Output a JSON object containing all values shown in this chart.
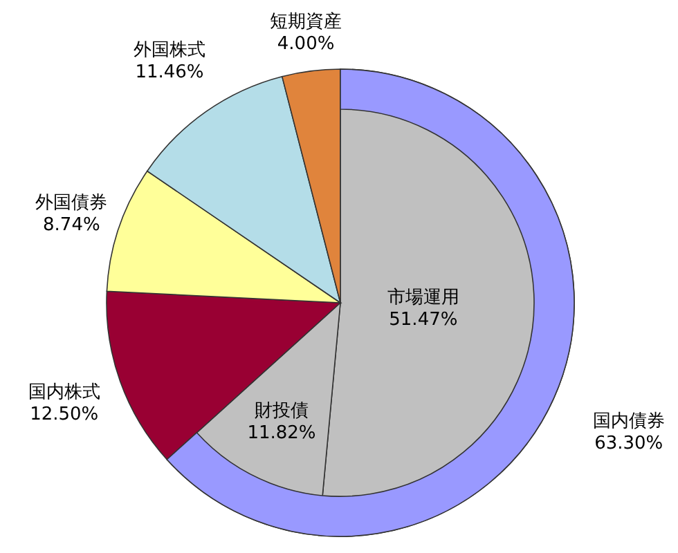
{
  "chart_data": [
    {
      "type": "pie",
      "categories": [
        "市場運用",
        "財投債",
        "国内株式",
        "外国債券",
        "外国株式",
        "短期資産"
      ],
      "values": [
        51.47,
        11.82,
        12.5,
        8.74,
        11.46,
        4.0
      ],
      "colors": [
        "#c0c0c0",
        "#c0c0c0",
        "#990033",
        "#ffff99",
        "#b4dde8",
        "#e0843c"
      ],
      "value_labels": [
        "51.47%",
        "11.82%",
        "12.50%",
        "8.74%",
        "11.46%",
        "4.00%"
      ]
    },
    {
      "type": "pie",
      "categories": [
        "国内債券"
      ],
      "values": [
        63.3
      ],
      "colors": [
        "#9999ff"
      ],
      "value_labels": [
        "63.30%"
      ]
    }
  ]
}
